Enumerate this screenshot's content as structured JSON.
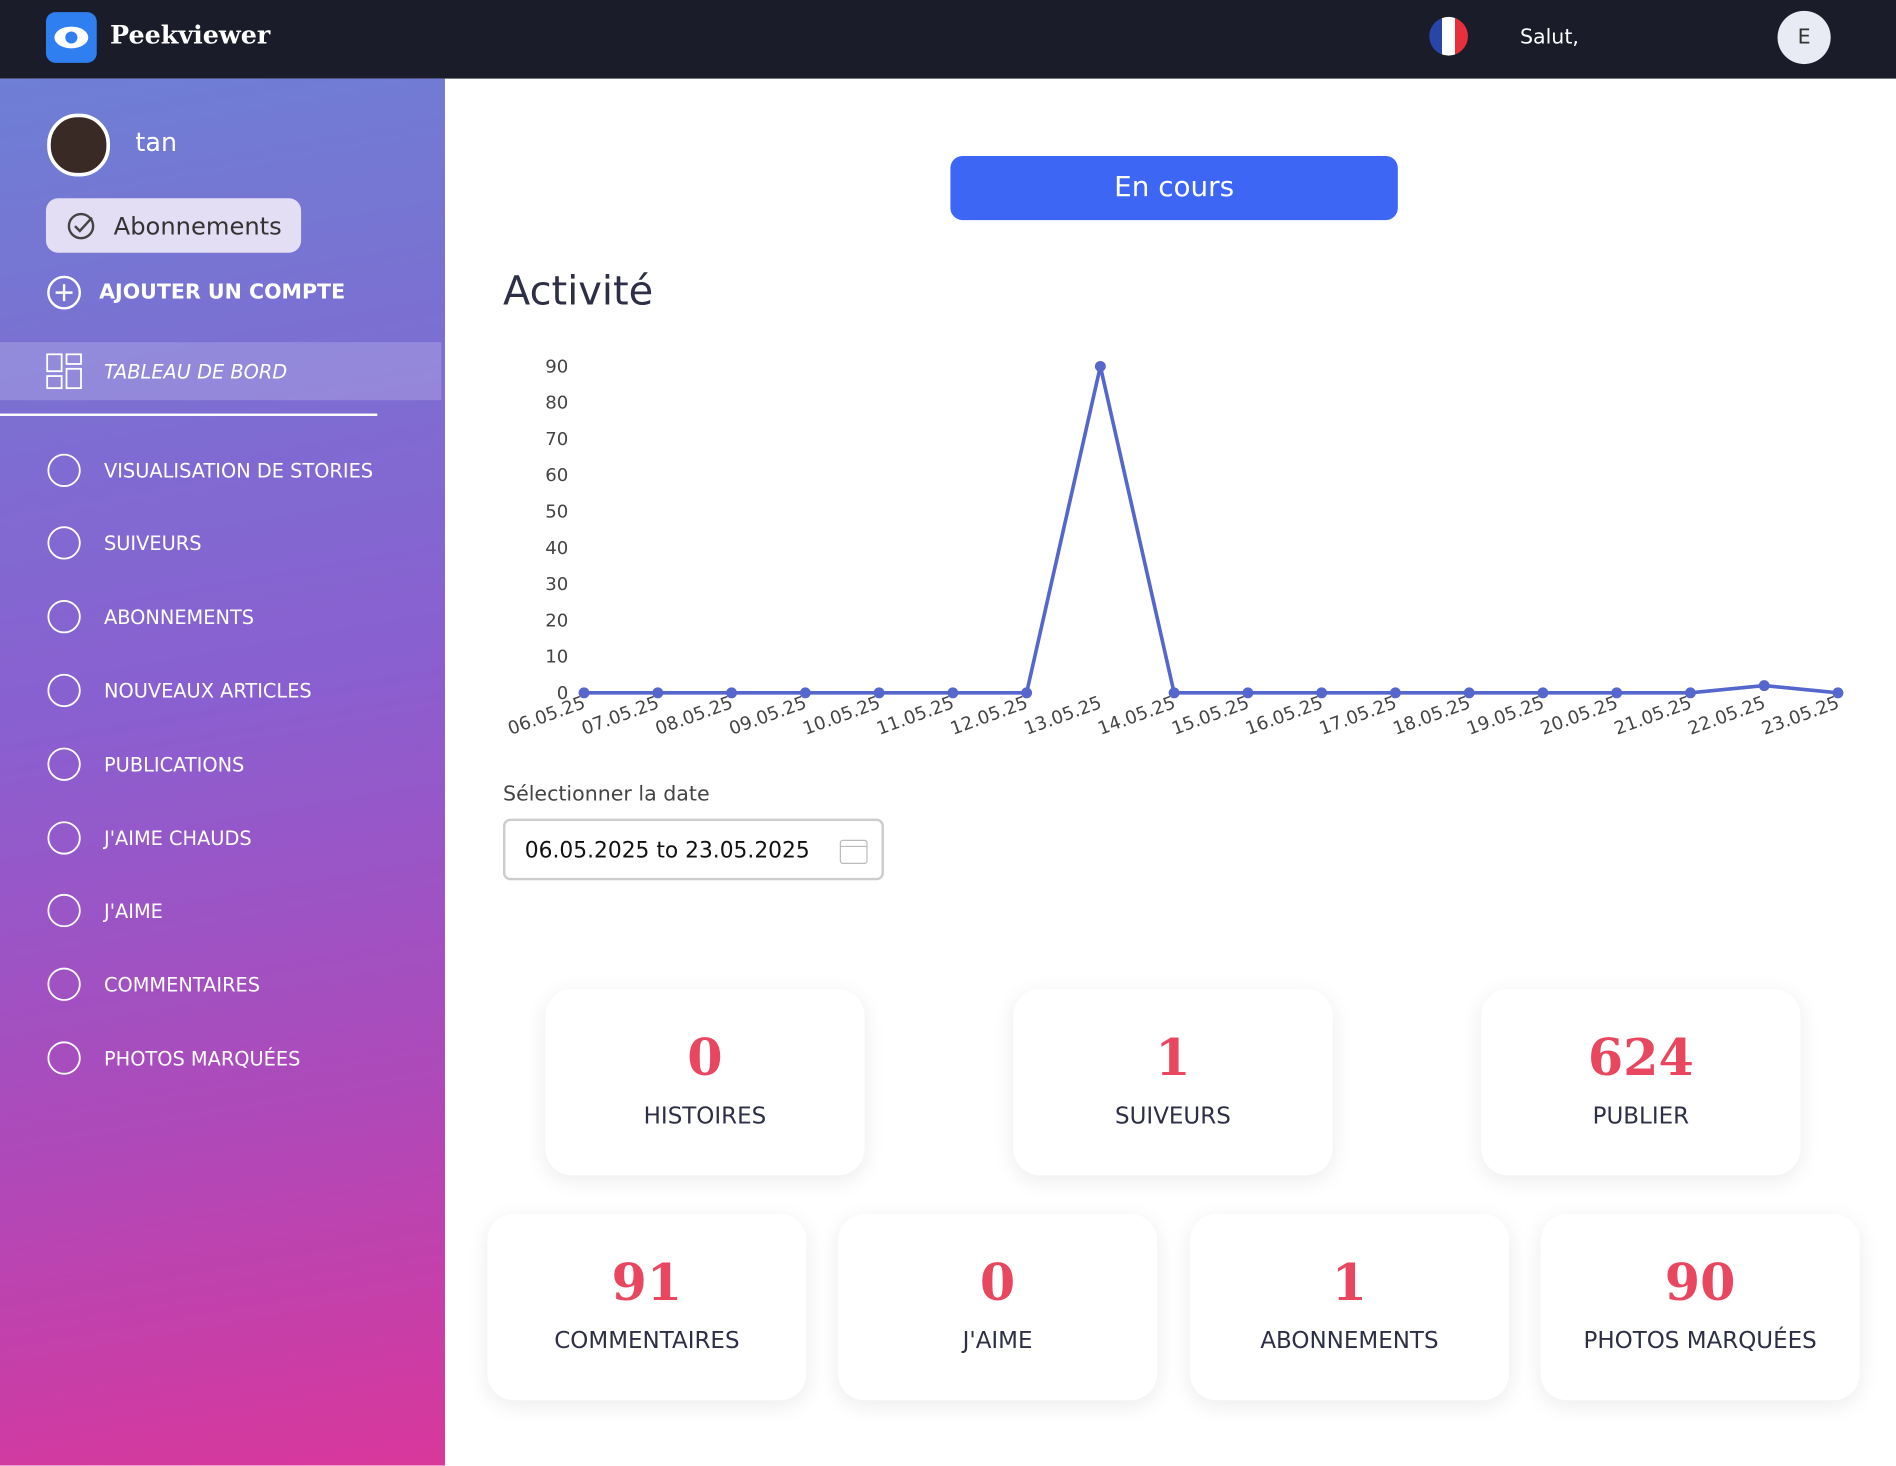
{
  "header": {
    "brand": "Peekviewer",
    "greeting": "Salut,",
    "avatar": "E"
  },
  "sidebar": {
    "user": "tan",
    "button": "Abonnements",
    "add_account": "AJOUTER UN COMPTE",
    "nav": [
      "TABLEAU DE BORD",
      "VISUALISATION DE STORIES",
      "SUIVEURS",
      "ABONNEMENTS",
      "NOUVEAUX ARTICLES",
      "PUBLICATIONS",
      "J'AIME CHAUDS",
      "J'AIME",
      "COMMENTAIRES",
      "PHOTOS MARQUÉES"
    ]
  },
  "main": {
    "status": "En cours",
    "chart_data": {
      "type": "line",
      "title": "Activité",
      "categories": [
        "06.05.25",
        "07.05.25",
        "08.05.25",
        "09.05.25",
        "10.05.25",
        "11.05.25",
        "12.05.25",
        "13.05.25",
        "14.05.25",
        "15.05.25",
        "16.05.25",
        "17.05.25",
        "18.05.25",
        "19.05.25",
        "20.05.25",
        "21.05.25",
        "22.05.25",
        "23.05.25"
      ],
      "values": [
        0,
        0,
        0,
        0,
        0,
        0,
        0,
        90,
        0,
        0,
        0,
        0,
        0,
        0,
        0,
        0,
        2,
        0
      ],
      "color": "#5566cc",
      "ylim": [
        0,
        90
      ],
      "yticks": [
        0,
        10,
        20,
        30,
        40,
        50,
        60,
        70,
        80,
        90
      ]
    },
    "date_label": "Sélectionner la date",
    "date_value": "06.05.2025 to 23.05.2025",
    "stats": [
      {
        "value": "0",
        "label": "HISTOIRES"
      },
      {
        "value": "1",
        "label": "SUIVEURS"
      },
      {
        "value": "624",
        "label": "PUBLIER"
      },
      {
        "value": "91",
        "label": "COMMENTAIRES"
      },
      {
        "value": "0",
        "label": "J'AIME"
      },
      {
        "value": "1",
        "label": "ABONNEMENTS"
      },
      {
        "value": "90",
        "label": "PHOTOS MARQUÉES"
      }
    ]
  }
}
